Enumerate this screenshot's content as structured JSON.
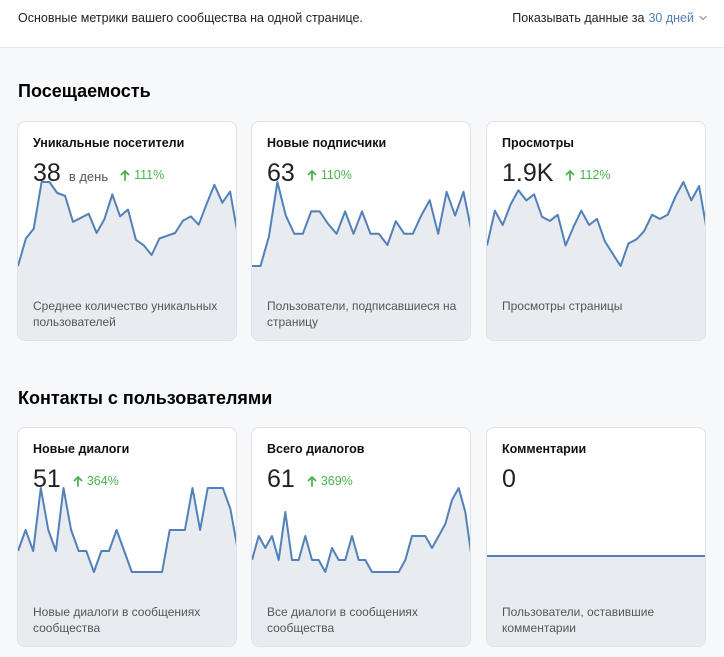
{
  "header": {
    "description": "Основные метрики вашего сообщества на одной странице.",
    "period_prefix": "Показывать данные за",
    "period_value": "30 дней"
  },
  "colors": {
    "line": "#5181b8",
    "area": "#e8ebf0",
    "trend_up": "#4bb34b",
    "accent": "#5181b8"
  },
  "sections": [
    {
      "title": "Посещаемость",
      "cards": [
        {
          "title": "Уникальные посетители",
          "value": "38",
          "unit": "в день",
          "trend": "111%",
          "footer": "Среднее количество уникальных пользователей",
          "series": [
            22,
            42,
            49,
            83,
            83,
            75,
            73,
            54,
            57,
            60,
            46,
            56,
            74,
            58,
            63,
            41,
            37,
            30,
            42,
            44,
            46,
            55,
            58,
            52,
            67,
            81,
            68,
            76,
            44
          ]
        },
        {
          "title": "Новые подписчики",
          "value": "63",
          "unit": "",
          "trend": "110%",
          "footer": "Пользователи, подписавшиеся на страницу",
          "series": [
            22,
            22,
            43,
            82,
            58,
            45,
            45,
            61,
            61,
            52,
            45,
            61,
            45,
            61,
            45,
            45,
            37,
            54,
            45,
            45,
            58,
            69,
            45,
            75,
            58,
            75,
            45
          ]
        },
        {
          "title": "Просмотры",
          "value": "1.9K",
          "unit": "",
          "trend": "112%",
          "footer": "Просмотры страницы",
          "series": [
            51,
            68,
            61,
            71,
            78,
            73,
            76,
            65,
            63,
            66,
            51,
            60,
            68,
            61,
            64,
            53,
            47,
            41,
            52,
            54,
            58,
            66,
            64,
            66,
            75,
            82,
            73,
            80,
            58
          ]
        }
      ]
    },
    {
      "title": "Контакты с пользователями",
      "cards": [
        {
          "title": "Новые диалоги",
          "value": "51",
          "unit": "",
          "trend": "364%",
          "footer": "Новые диалоги в сообщениях сообщества",
          "series": [
            1,
            2,
            1,
            4,
            2,
            1,
            4,
            2,
            1,
            1,
            0,
            1,
            1,
            2,
            1,
            0,
            0,
            0,
            0,
            0,
            2,
            2,
            2,
            4,
            2,
            4,
            4,
            4,
            3,
            1
          ]
        },
        {
          "title": "Всего диалогов",
          "value": "61",
          "unit": "",
          "trend": "369%",
          "footer": "Все диалоги в сообщениях сообщества",
          "series": [
            1,
            3,
            2,
            3,
            1,
            5,
            1,
            1,
            3,
            1,
            1,
            0,
            2,
            1,
            1,
            3,
            1,
            1,
            0,
            0,
            0,
            0,
            0,
            1,
            3,
            3,
            3,
            2,
            3,
            4,
            6,
            7,
            5,
            1
          ]
        },
        {
          "title": "Комментарии",
          "value": "0",
          "unit": "",
          "trend": "",
          "footer": "Пользователи, оставившие комментарии",
          "series": [
            0,
            0
          ]
        }
      ]
    }
  ]
}
